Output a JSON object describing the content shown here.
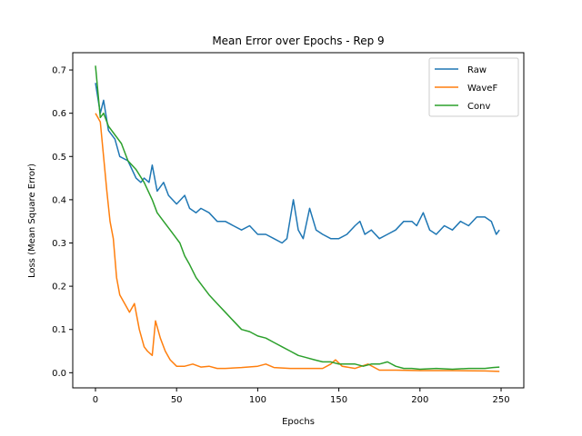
{
  "chart_data": {
    "type": "line",
    "title": "Mean Error over Epochs - Rep 9",
    "xlabel": "Epochs",
    "ylabel": "Loss (Mean Square Error)",
    "xlim": [
      -14,
      264
    ],
    "ylim": [
      -0.035,
      0.74
    ],
    "xticks": [
      0,
      50,
      100,
      150,
      200,
      250
    ],
    "yticks": [
      0.0,
      0.1,
      0.2,
      0.3,
      0.4,
      0.5,
      0.6,
      0.7
    ],
    "legend_position": "top-right",
    "series": [
      {
        "name": "Raw",
        "color": "#1f77b4",
        "points": [
          [
            0,
            0.67
          ],
          [
            3,
            0.6
          ],
          [
            5,
            0.63
          ],
          [
            8,
            0.56
          ],
          [
            12,
            0.54
          ],
          [
            15,
            0.5
          ],
          [
            20,
            0.49
          ],
          [
            25,
            0.45
          ],
          [
            28,
            0.44
          ],
          [
            30,
            0.45
          ],
          [
            33,
            0.44
          ],
          [
            35,
            0.48
          ],
          [
            38,
            0.42
          ],
          [
            42,
            0.44
          ],
          [
            45,
            0.41
          ],
          [
            50,
            0.39
          ],
          [
            55,
            0.41
          ],
          [
            58,
            0.38
          ],
          [
            62,
            0.37
          ],
          [
            65,
            0.38
          ],
          [
            70,
            0.37
          ],
          [
            75,
            0.35
          ],
          [
            80,
            0.35
          ],
          [
            85,
            0.34
          ],
          [
            90,
            0.33
          ],
          [
            95,
            0.34
          ],
          [
            100,
            0.32
          ],
          [
            105,
            0.32
          ],
          [
            110,
            0.31
          ],
          [
            115,
            0.3
          ],
          [
            118,
            0.31
          ],
          [
            122,
            0.4
          ],
          [
            125,
            0.33
          ],
          [
            128,
            0.31
          ],
          [
            132,
            0.38
          ],
          [
            136,
            0.33
          ],
          [
            140,
            0.32
          ],
          [
            145,
            0.31
          ],
          [
            150,
            0.31
          ],
          [
            155,
            0.32
          ],
          [
            160,
            0.34
          ],
          [
            163,
            0.35
          ],
          [
            166,
            0.32
          ],
          [
            170,
            0.33
          ],
          [
            175,
            0.31
          ],
          [
            180,
            0.32
          ],
          [
            185,
            0.33
          ],
          [
            190,
            0.35
          ],
          [
            195,
            0.35
          ],
          [
            198,
            0.34
          ],
          [
            202,
            0.37
          ],
          [
            206,
            0.33
          ],
          [
            210,
            0.32
          ],
          [
            215,
            0.34
          ],
          [
            220,
            0.33
          ],
          [
            225,
            0.35
          ],
          [
            230,
            0.34
          ],
          [
            235,
            0.36
          ],
          [
            240,
            0.36
          ],
          [
            244,
            0.35
          ],
          [
            247,
            0.32
          ],
          [
            249,
            0.33
          ]
        ]
      },
      {
        "name": "WaveF",
        "color": "#ff7f0e",
        "points": [
          [
            0,
            0.6
          ],
          [
            3,
            0.58
          ],
          [
            5,
            0.5
          ],
          [
            7,
            0.42
          ],
          [
            9,
            0.35
          ],
          [
            11,
            0.31
          ],
          [
            13,
            0.22
          ],
          [
            15,
            0.18
          ],
          [
            18,
            0.16
          ],
          [
            21,
            0.14
          ],
          [
            24,
            0.16
          ],
          [
            27,
            0.1
          ],
          [
            30,
            0.06
          ],
          [
            32,
            0.05
          ],
          [
            35,
            0.04
          ],
          [
            37,
            0.12
          ],
          [
            40,
            0.08
          ],
          [
            43,
            0.05
          ],
          [
            46,
            0.03
          ],
          [
            50,
            0.015
          ],
          [
            55,
            0.015
          ],
          [
            60,
            0.02
          ],
          [
            65,
            0.013
          ],
          [
            70,
            0.015
          ],
          [
            75,
            0.01
          ],
          [
            80,
            0.01
          ],
          [
            90,
            0.012
          ],
          [
            100,
            0.015
          ],
          [
            105,
            0.02
          ],
          [
            110,
            0.012
          ],
          [
            120,
            0.01
          ],
          [
            130,
            0.01
          ],
          [
            140,
            0.01
          ],
          [
            145,
            0.02
          ],
          [
            148,
            0.03
          ],
          [
            152,
            0.015
          ],
          [
            160,
            0.01
          ],
          [
            168,
            0.02
          ],
          [
            175,
            0.006
          ],
          [
            185,
            0.006
          ],
          [
            200,
            0.005
          ],
          [
            220,
            0.005
          ],
          [
            240,
            0.004
          ],
          [
            249,
            0.003
          ]
        ]
      },
      {
        "name": "Conv",
        "color": "#2ca02c",
        "points": [
          [
            0,
            0.71
          ],
          [
            3,
            0.59
          ],
          [
            5,
            0.6
          ],
          [
            8,
            0.57
          ],
          [
            12,
            0.55
          ],
          [
            16,
            0.53
          ],
          [
            20,
            0.49
          ],
          [
            25,
            0.47
          ],
          [
            30,
            0.44
          ],
          [
            35,
            0.4
          ],
          [
            38,
            0.37
          ],
          [
            42,
            0.35
          ],
          [
            46,
            0.33
          ],
          [
            50,
            0.31
          ],
          [
            52,
            0.3
          ],
          [
            55,
            0.27
          ],
          [
            58,
            0.25
          ],
          [
            62,
            0.22
          ],
          [
            66,
            0.2
          ],
          [
            70,
            0.18
          ],
          [
            75,
            0.16
          ],
          [
            80,
            0.14
          ],
          [
            85,
            0.12
          ],
          [
            90,
            0.1
          ],
          [
            95,
            0.095
          ],
          [
            100,
            0.085
          ],
          [
            105,
            0.08
          ],
          [
            110,
            0.07
          ],
          [
            115,
            0.06
          ],
          [
            120,
            0.05
          ],
          [
            125,
            0.04
          ],
          [
            130,
            0.035
          ],
          [
            135,
            0.03
          ],
          [
            140,
            0.025
          ],
          [
            145,
            0.025
          ],
          [
            150,
            0.02
          ],
          [
            155,
            0.02
          ],
          [
            160,
            0.02
          ],
          [
            165,
            0.015
          ],
          [
            170,
            0.02
          ],
          [
            175,
            0.02
          ],
          [
            180,
            0.025
          ],
          [
            185,
            0.015
          ],
          [
            190,
            0.01
          ],
          [
            195,
            0.01
          ],
          [
            200,
            0.008
          ],
          [
            210,
            0.01
          ],
          [
            220,
            0.008
          ],
          [
            230,
            0.01
          ],
          [
            240,
            0.01
          ],
          [
            245,
            0.012
          ],
          [
            249,
            0.013
          ]
        ]
      }
    ]
  }
}
